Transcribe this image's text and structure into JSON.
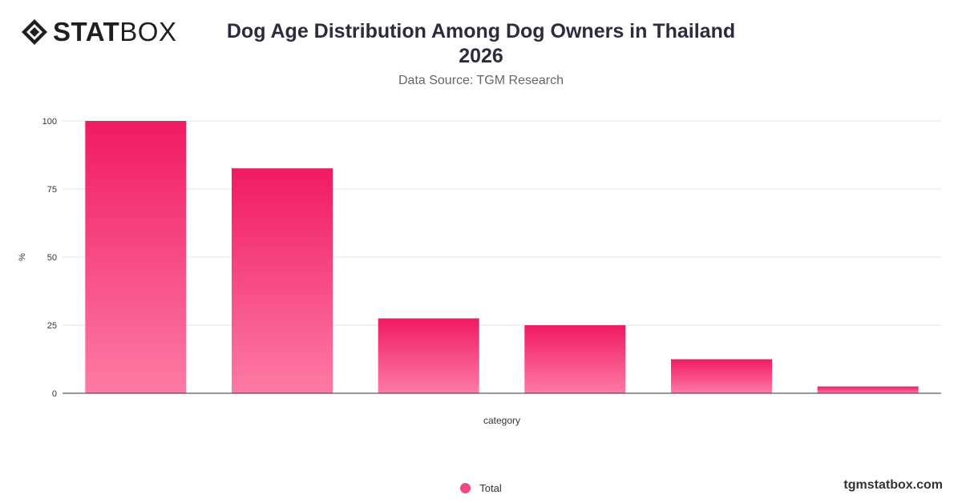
{
  "brand": {
    "logo_bold": "STAT",
    "logo_light": "BOX",
    "site": "tgmstatbox.com"
  },
  "header": {
    "title_line1": "Dog Age Distribution Among Dog Owners in Thailand",
    "title_line2": "2026",
    "subtitle": "Data Source: TGM Research"
  },
  "legend": {
    "label": "Total"
  },
  "colors": {
    "bar_top": "#f01a63",
    "bar_bottom": "#fd7ba5",
    "legend": "#f0487f"
  },
  "chart_data": {
    "type": "bar",
    "categories": [
      "",
      "",
      "",
      "",
      "",
      ""
    ],
    "series": [
      {
        "name": "Total",
        "values": [
          100,
          82.6,
          27.5,
          25,
          12.5,
          2.5
        ]
      }
    ],
    "xlabel": "category",
    "ylabel": "%",
    "ylim": [
      0,
      100
    ],
    "yticks": [
      0,
      25,
      50,
      75,
      100
    ],
    "grid": true,
    "legend_position": "bottom"
  }
}
